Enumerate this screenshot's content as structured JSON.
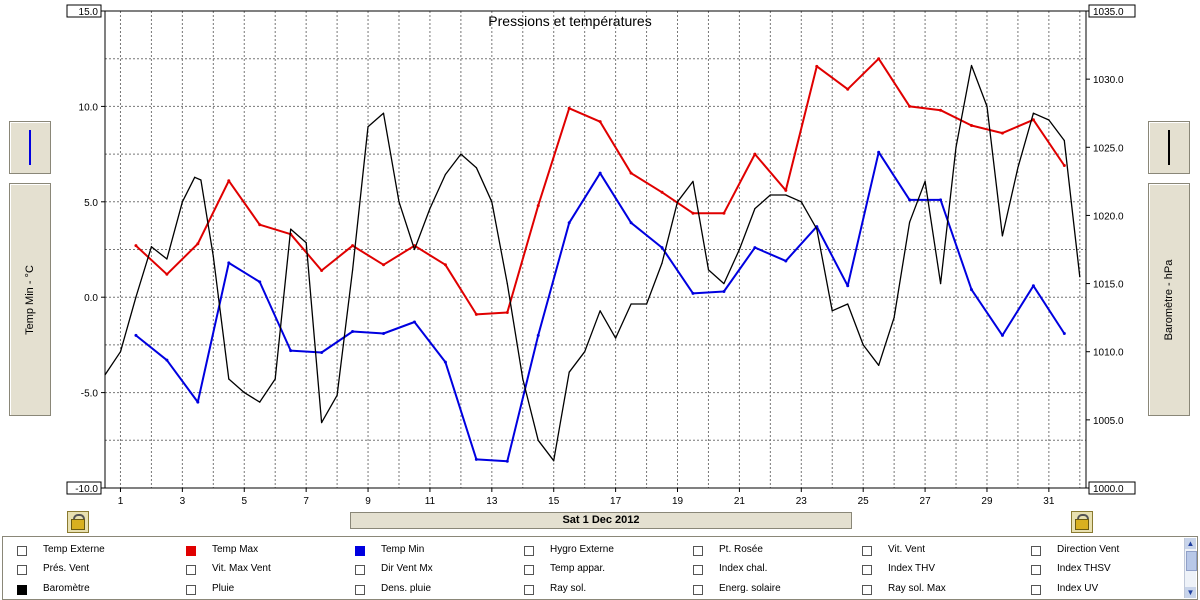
{
  "legend": [
    {
      "label": "Temp Externe",
      "color": null
    },
    {
      "label": "Temp Max",
      "color": "#e00000"
    },
    {
      "label": "Temp Min",
      "color": "#0000e0"
    },
    {
      "label": "Hygro Externe",
      "color": null
    },
    {
      "label": "Pt. Rosée",
      "color": null
    },
    {
      "label": "Vit. Vent",
      "color": null
    },
    {
      "label": "Direction Vent",
      "color": null
    },
    {
      "label": "Prés. Vent",
      "color": null
    },
    {
      "label": "Vit. Max Vent",
      "color": null
    },
    {
      "label": "Dir Vent Mx",
      "color": null
    },
    {
      "label": "Temp appar.",
      "color": null
    },
    {
      "label": "Index chal.",
      "color": null
    },
    {
      "label": "Index THV",
      "color": null
    },
    {
      "label": "Index THSV",
      "color": null
    },
    {
      "label": "Baromètre",
      "color": "#000000"
    },
    {
      "label": "Pluie",
      "color": null
    },
    {
      "label": "Dens. pluie",
      "color": null
    },
    {
      "label": "Ray sol.",
      "color": null
    },
    {
      "label": "Energ. solaire",
      "color": null
    },
    {
      "label": "Ray sol. Max",
      "color": null
    },
    {
      "label": "Index UV",
      "color": null
    }
  ],
  "left_axis_button_color": "#0000e0",
  "right_axis_button_color": "#000000",
  "date_label": "Sat 1 Dec 2012",
  "lock_icon": "padlock-icon",
  "chart_data": {
    "type": "line",
    "title": "Pressions et températures",
    "ylabel": "Temp Min - °C",
    "y2label": "Baromètre - hPa",
    "xlim": [
      0.5,
      32.2
    ],
    "ylim": [
      -10,
      15
    ],
    "y2lim": [
      1000,
      1035
    ],
    "x_ticks": [
      1,
      3,
      5,
      7,
      9,
      11,
      13,
      15,
      17,
      19,
      21,
      23,
      25,
      27,
      29,
      31
    ],
    "x_tick_labels": [
      "1",
      "3",
      "5",
      "7",
      "9",
      "11",
      "13",
      "15",
      "17",
      "19",
      "21",
      "23",
      "25",
      "27",
      "29",
      "31"
    ],
    "y_ticks": [
      -10,
      -5,
      0,
      5,
      10,
      15
    ],
    "y_tick_labels": [
      "-10.0",
      "-5.0",
      "0.0",
      "5.0",
      "10.0",
      "15.0"
    ],
    "y2_ticks": [
      1000,
      1005,
      1010,
      1015,
      1020,
      1025,
      1030,
      1035
    ],
    "y2_tick_labels": [
      "1000.0",
      "1005.0",
      "1010.0",
      "1015.0",
      "1020.0",
      "1025.0",
      "1030.0",
      "1035.0"
    ],
    "grid": true,
    "series": [
      {
        "name": "Temp Max",
        "color": "#e00000",
        "axis": "left",
        "x": [
          1.5,
          2.5,
          3.5,
          4.5,
          5.5,
          6.5,
          7.5,
          8.5,
          9.5,
          10.5,
          11.5,
          12.5,
          13.5,
          14.5,
          15.5,
          16.5,
          17.5,
          18.5,
          19.5,
          20.5,
          21.5,
          22.5,
          23.5,
          24.5,
          25.5,
          26.5,
          27.5,
          28.5,
          29.5,
          30.5,
          31.5
        ],
        "y": [
          2.7,
          1.2,
          2.8,
          6.1,
          3.8,
          3.3,
          1.4,
          2.7,
          1.7,
          2.7,
          1.7,
          -0.9,
          -0.8,
          4.8,
          9.9,
          9.2,
          6.5,
          5.5,
          4.4,
          4.4,
          7.5,
          5.6,
          12.1,
          10.9,
          12.5,
          10.0,
          9.8,
          9.0,
          8.6,
          9.3,
          6.9
        ]
      },
      {
        "name": "Temp Min",
        "color": "#0000e0",
        "axis": "left",
        "x": [
          1.5,
          2.5,
          3.5,
          4.5,
          5.5,
          6.5,
          7.5,
          8.5,
          9.5,
          10.5,
          11.5,
          12.5,
          13.5,
          14.5,
          15.5,
          16.5,
          17.5,
          18.5,
          19.5,
          20.5,
          21.5,
          22.5,
          23.5,
          24.5,
          25.5,
          26.5,
          27.5,
          28.5,
          29.5,
          30.5,
          31.5
        ],
        "y": [
          -2.0,
          -3.3,
          -5.5,
          1.8,
          0.8,
          -2.8,
          -2.9,
          -1.8,
          -1.9,
          -1.3,
          -3.4,
          -8.5,
          -8.6,
          -2.0,
          3.9,
          6.5,
          3.9,
          2.6,
          0.2,
          0.3,
          2.6,
          1.9,
          3.7,
          0.6,
          7.6,
          5.1,
          5.1,
          0.4,
          -2.0,
          0.6,
          -1.9
        ]
      },
      {
        "name": "Baromètre",
        "color": "#000000",
        "axis": "right",
        "x": [
          0.5,
          1.0,
          1.5,
          2.0,
          2.5,
          3.0,
          3.4,
          3.6,
          4.0,
          4.5,
          5.0,
          5.5,
          6.0,
          6.5,
          7.0,
          7.5,
          8.0,
          8.5,
          9.0,
          9.5,
          10.0,
          10.5,
          11.0,
          11.5,
          12.0,
          12.5,
          13.0,
          13.5,
          14.0,
          14.5,
          15.0,
          15.5,
          16.0,
          16.5,
          17.0,
          17.5,
          18.0,
          18.5,
          19.0,
          19.5,
          20.0,
          20.5,
          21.0,
          21.5,
          22.0,
          22.5,
          23.0,
          23.5,
          24.0,
          24.5,
          25.0,
          25.5,
          26.0,
          26.5,
          27.0,
          27.5,
          28.0,
          28.5,
          29.0,
          29.5,
          30.0,
          30.5,
          31.0,
          31.5,
          32.0
        ],
        "y": [
          1008.3,
          1010.0,
          1014.0,
          1017.7,
          1016.8,
          1021.0,
          1022.8,
          1022.6,
          1017.0,
          1008.0,
          1007.0,
          1006.3,
          1008.0,
          1019.0,
          1018.0,
          1004.8,
          1006.8,
          1016.0,
          1026.5,
          1027.5,
          1021.0,
          1017.5,
          1020.5,
          1023.0,
          1024.5,
          1023.5,
          1021.0,
          1015.0,
          1008.0,
          1003.5,
          1002.0,
          1008.5,
          1010.0,
          1013.0,
          1011.0,
          1013.5,
          1013.5,
          1016.5,
          1021.0,
          1022.5,
          1016.0,
          1015.0,
          1017.5,
          1020.5,
          1021.5,
          1021.5,
          1021.0,
          1019.0,
          1013.0,
          1013.5,
          1010.5,
          1009.0,
          1012.5,
          1019.5,
          1022.5,
          1015.0,
          1025.0,
          1031.0,
          1028.0,
          1018.5,
          1023.5,
          1027.5,
          1027.0,
          1025.5,
          1015.5
        ]
      }
    ]
  }
}
